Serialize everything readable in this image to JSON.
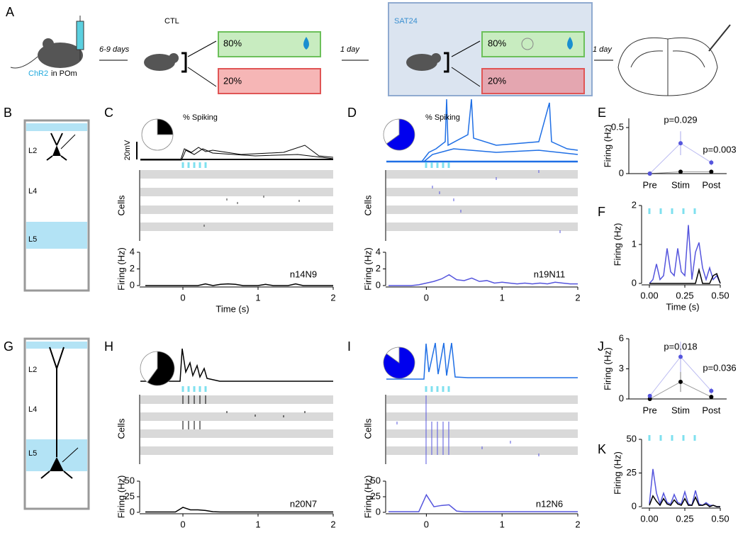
{
  "figure": {
    "panel_a": {
      "label": "A",
      "injection": "ChR2",
      "injection_site": "in POm",
      "interval_1": "6-9 days",
      "group_ctl": "CTL",
      "ctl_high": "80%",
      "ctl_low": "20%",
      "interval_2": "1 day",
      "group_sat": "SAT24",
      "sat_high": "80%",
      "sat_low": "20%",
      "interval_3": "1 day"
    },
    "panel_b": {
      "label": "B",
      "layers": [
        "L2",
        "L4",
        "L5"
      ]
    },
    "panel_c": {
      "label": "C",
      "voltage_scale": "20mV",
      "raster_ylabel": "Cells"
    },
    "panel_d": {
      "label": "D",
      "raster_ylabel": "Cells"
    },
    "panel_e": {
      "label": "E"
    },
    "panel_f": {
      "label": "F"
    },
    "panel_g": {
      "label": "G",
      "layers": [
        "L2",
        "L4",
        "L5"
      ]
    },
    "panel_h": {
      "label": "H",
      "raster_ylabel": "Cells"
    },
    "panel_i": {
      "label": "I",
      "raster_ylabel": "Cells"
    },
    "panel_j": {
      "label": "J"
    },
    "panel_k": {
      "label": "K"
    }
  },
  "chart_data": [
    {
      "type": "pie",
      "title": "% Spiking",
      "values": [
        25,
        75
      ],
      "colors": [
        "#000000",
        "#ffffff"
      ]
    },
    {
      "type": "line",
      "xlabel": "Time (s)",
      "ylabel": "Firing (Hz)",
      "annotation": "n14N9",
      "x": [
        -0.5,
        -0.4,
        -0.3,
        -0.2,
        -0.1,
        0,
        0.1,
        0.2,
        0.3,
        0.4,
        0.5,
        0.6,
        0.7,
        0.8,
        0.9,
        1.0,
        1.1,
        1.2,
        1.3,
        1.4,
        1.5,
        1.6,
        1.7,
        1.8,
        1.9,
        2.0
      ],
      "series": [
        {
          "color": "#000000",
          "values": [
            0,
            0,
            0,
            0,
            0,
            0,
            0,
            0,
            0.2,
            0,
            0.15,
            0.2,
            0.15,
            0,
            0,
            0,
            0.15,
            0,
            0,
            0,
            0.2,
            0,
            0,
            0,
            0,
            0
          ]
        }
      ],
      "xlim": [
        -0.5,
        2
      ],
      "ylim": [
        0,
        4
      ],
      "xticks": [
        0,
        1,
        2
      ],
      "yticks": [
        0,
        2,
        4
      ]
    },
    {
      "type": "pie",
      "title": "% Spiking",
      "values": [
        65,
        35
      ],
      "colors": [
        "#0000ee",
        "#ffffff"
      ]
    },
    {
      "type": "line",
      "ylabel": "Firing (Hz)",
      "annotation": "n19N11",
      "x": [
        -0.5,
        -0.4,
        -0.3,
        -0.2,
        -0.1,
        0,
        0.1,
        0.2,
        0.3,
        0.4,
        0.5,
        0.6,
        0.7,
        0.8,
        0.9,
        1.0,
        1.1,
        1.2,
        1.3,
        1.4,
        1.5,
        1.6,
        1.7,
        1.8,
        1.9,
        2.0
      ],
      "series": [
        {
          "color": "#5555dd",
          "values": [
            0,
            0,
            0,
            0,
            0.1,
            0.3,
            0.5,
            0.8,
            1.3,
            0.7,
            0.6,
            0.9,
            0.5,
            0.6,
            0.3,
            0.4,
            0.3,
            0.2,
            0.3,
            0.2,
            0.3,
            0.2,
            0.4,
            0.3,
            0.2,
            0.2
          ]
        }
      ],
      "xlim": [
        -0.5,
        2
      ],
      "ylim": [
        0,
        4
      ],
      "xticks": [
        0,
        1,
        2
      ],
      "yticks": [
        0,
        2,
        4
      ]
    },
    {
      "type": "line",
      "ylabel": "Firing (Hz)",
      "categories": [
        "Pre",
        "Stim",
        "Post"
      ],
      "annotations": [
        "p=0.029",
        "p=0.003"
      ],
      "series": [
        {
          "color": "#000000",
          "values": [
            0,
            0.02,
            0.02
          ],
          "errors": [
            0,
            0.01,
            0.01
          ]
        },
        {
          "color": "#5555dd",
          "values": [
            0,
            0.33,
            0.12
          ],
          "errors": [
            0,
            0.13,
            0.03
          ]
        }
      ],
      "ylim": [
        0,
        0.6
      ],
      "yticks": [
        0,
        0.5
      ]
    },
    {
      "type": "line",
      "xlabel": "Time (s)",
      "ylabel": "Firing (Hz)",
      "x": [
        0,
        0.025,
        0.05,
        0.075,
        0.1,
        0.125,
        0.15,
        0.175,
        0.2,
        0.225,
        0.25,
        0.275,
        0.3,
        0.325,
        0.35,
        0.375,
        0.4,
        0.425,
        0.45,
        0.475,
        0.5
      ],
      "series": [
        {
          "color": "#5555dd",
          "values": [
            0,
            0.1,
            0.5,
            0.1,
            0.2,
            0.9,
            0.3,
            0.2,
            0.9,
            0.3,
            0.2,
            1.5,
            0.1,
            0.8,
            1.05,
            0.4,
            0.1,
            0.4,
            0.1,
            0.2,
            0
          ]
        },
        {
          "color": "#000000",
          "values": [
            0,
            0,
            0,
            0,
            0,
            0,
            0,
            0,
            0,
            0,
            0,
            0,
            0,
            0,
            0.35,
            0,
            0,
            0,
            0.2,
            0.25,
            0
          ]
        }
      ],
      "xlim": [
        0,
        0.5
      ],
      "ylim": [
        0,
        2
      ],
      "xticks": [
        {
          "value": 0,
          "label": "0.00"
        },
        {
          "value": 0.25,
          "label": "0.25"
        },
        {
          "value": 0.5,
          "label": "0.50"
        }
      ],
      "yticks": [
        0,
        1,
        2
      ]
    },
    {
      "type": "pie",
      "values": [
        60,
        40
      ],
      "colors": [
        "#000000",
        "#ffffff"
      ]
    },
    {
      "type": "line",
      "ylabel": "Firing (Hz)",
      "annotation": "n20N7",
      "x": [
        -0.5,
        -0.4,
        -0.3,
        -0.2,
        -0.1,
        0,
        0.1,
        0.2,
        0.3,
        0.4,
        0.5,
        0.6,
        0.7,
        0.8,
        0.9,
        1.0,
        1.1,
        1.2,
        1.3,
        1.4,
        1.5,
        1.6,
        1.7,
        1.8,
        1.9,
        2.0
      ],
      "series": [
        {
          "color": "#000000",
          "values": [
            0.5,
            0.5,
            0.5,
            0.5,
            0.5,
            8,
            4,
            4,
            3,
            1,
            0.5,
            0.5,
            0.5,
            0.5,
            0.5,
            0.5,
            0.5,
            0.5,
            0.5,
            0.5,
            0.5,
            0.5,
            0.5,
            0.5,
            0.5,
            0.5
          ]
        }
      ],
      "xlim": [
        -0.5,
        2
      ],
      "ylim": [
        0,
        50
      ],
      "xticks": [
        0,
        1,
        2
      ],
      "yticks": [
        0,
        25,
        50
      ]
    },
    {
      "type": "pie",
      "values": [
        85,
        15
      ],
      "colors": [
        "#0000ee",
        "#ffffff"
      ]
    },
    {
      "type": "line",
      "ylabel": "Firing (Hz)",
      "annotation": "n12N6",
      "x": [
        -0.5,
        -0.4,
        -0.3,
        -0.2,
        -0.1,
        0,
        0.1,
        0.2,
        0.3,
        0.4,
        0.5,
        0.6,
        0.7,
        0.8,
        0.9,
        1.0,
        1.1,
        1.2,
        1.3,
        1.4,
        1.5,
        1.6,
        1.7,
        1.8,
        1.9,
        2.0
      ],
      "series": [
        {
          "color": "#5555dd",
          "values": [
            1,
            1,
            1,
            1,
            1,
            28,
            9,
            11,
            12,
            2,
            1,
            1,
            1,
            1,
            1,
            1,
            1,
            1,
            1,
            1,
            1,
            1,
            1,
            1,
            1,
            1
          ]
        }
      ],
      "xlim": [
        -0.5,
        2
      ],
      "ylim": [
        0,
        50
      ],
      "xticks": [
        0,
        1,
        2
      ],
      "yticks": [
        0,
        25,
        50
      ]
    },
    {
      "type": "line",
      "ylabel": "Firing (Hz)",
      "categories": [
        "Pre",
        "Stim",
        "Post"
      ],
      "annotations": [
        "p=0.018",
        "p=0.036"
      ],
      "series": [
        {
          "color": "#000000",
          "values": [
            0,
            1.7,
            0.2
          ],
          "errors": [
            0,
            1,
            0.1
          ]
        },
        {
          "color": "#5555dd",
          "values": [
            0.3,
            4.2,
            0.8
          ],
          "errors": [
            0.1,
            1.5,
            0.3
          ]
        }
      ],
      "ylim": [
        0,
        6
      ],
      "yticks": [
        0,
        3,
        6
      ]
    },
    {
      "type": "line",
      "ylabel": "Firing (Hz)",
      "x": [
        0,
        0.025,
        0.05,
        0.075,
        0.1,
        0.125,
        0.15,
        0.175,
        0.2,
        0.225,
        0.25,
        0.275,
        0.3,
        0.325,
        0.35,
        0.375,
        0.4,
        0.425,
        0.45,
        0.475,
        0.5
      ],
      "series": [
        {
          "color": "#5555dd",
          "values": [
            2,
            28,
            10,
            2,
            10,
            3,
            2,
            9,
            3,
            2,
            11,
            2,
            1,
            12,
            2,
            1,
            3,
            1,
            1,
            0,
            0
          ]
        },
        {
          "color": "#000000",
          "values": [
            1,
            8,
            4,
            1,
            6,
            2,
            1,
            5,
            2,
            1,
            6,
            1,
            1,
            7,
            1,
            1,
            2,
            0,
            1,
            0,
            0
          ]
        }
      ],
      "xlim": [
        0,
        0.5
      ],
      "ylim": [
        0,
        50
      ],
      "xticks": [
        {
          "value": 0,
          "label": "0.00"
        },
        {
          "value": 0.25,
          "label": "0.25"
        },
        {
          "value": 0.5,
          "label": "0.50"
        }
      ],
      "yticks": [
        0,
        25,
        50
      ]
    }
  ]
}
